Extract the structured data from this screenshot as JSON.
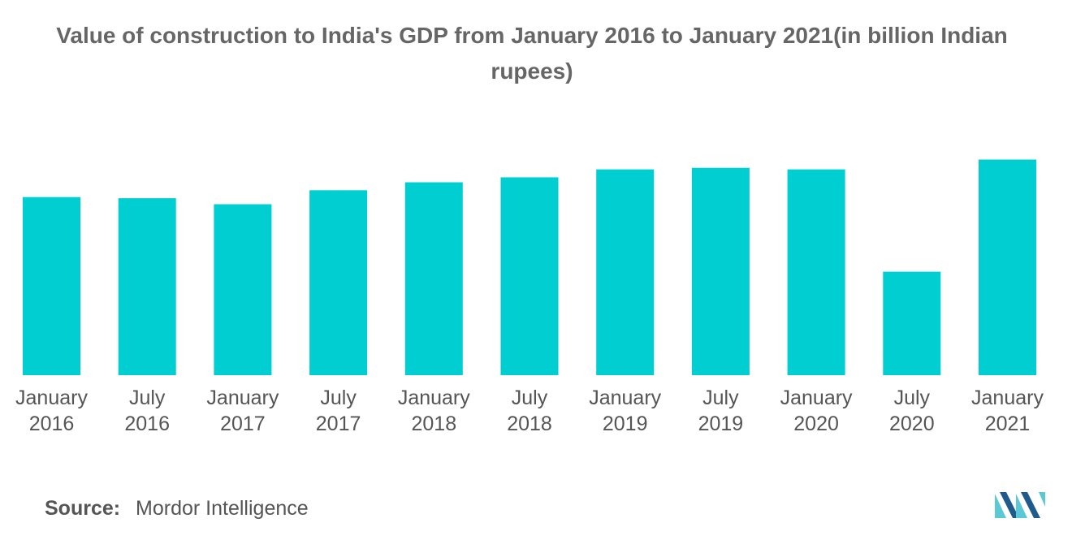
{
  "title": "Value of construction to India's GDP from January 2016 to January 2021(in billion Indian rupees)",
  "source": {
    "label": "Source:",
    "value": "Mordor Intelligence"
  },
  "colors": {
    "bar": "#00CED1",
    "text": "#555555",
    "title": "#666666",
    "logo_dark": "#1F5A8C",
    "logo_light": "#5BC8D6"
  },
  "logo_name": "mordor-intelligence-logo",
  "chart_data": {
    "type": "bar",
    "title": "Value of construction to India's GDP from January 2016 to January 2021(in billion Indian rupees)",
    "xlabel": "",
    "ylabel": "",
    "grid": false,
    "axes_visible": false,
    "categories": [
      [
        "January",
        "2016"
      ],
      [
        "July",
        "2016"
      ],
      [
        "January",
        "2017"
      ],
      [
        "July",
        "2017"
      ],
      [
        "January",
        "2018"
      ],
      [
        "July",
        "2018"
      ],
      [
        "January",
        "2019"
      ],
      [
        "July",
        "2019"
      ],
      [
        "January",
        "2020"
      ],
      [
        "July",
        "2020"
      ],
      [
        "January",
        "2021"
      ]
    ],
    "values": [
      2350,
      2335,
      2255,
      2440,
      2545,
      2610,
      2715,
      2735,
      2715,
      1365,
      2845
    ],
    "ylim": [
      0,
      3000
    ]
  }
}
